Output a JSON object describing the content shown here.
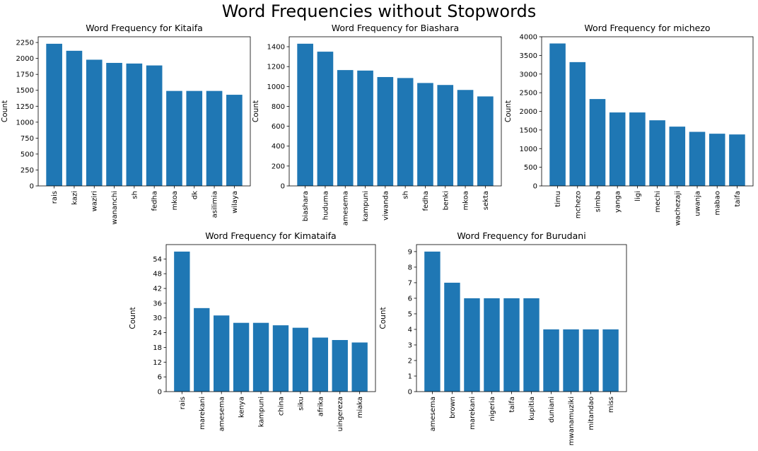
{
  "suptitle": "Word Frequencies without Stopwords",
  "bar_color": "#1f77b4",
  "chart_data": [
    {
      "type": "bar",
      "title": "Word Frequency for Kitaifa",
      "xlabel": "",
      "ylabel": "Count",
      "categories": [
        "rais",
        "kazi",
        "waziri",
        "wananchi",
        "sh",
        "fedha",
        "mkoa",
        "dk",
        "asilimia",
        "wilaya"
      ],
      "values": [
        2230,
        2120,
        1980,
        1930,
        1920,
        1890,
        1490,
        1490,
        1490,
        1430
      ],
      "ylim": [
        0,
        2340
      ],
      "yticks": [
        0,
        250,
        500,
        750,
        1000,
        1250,
        1500,
        1750,
        2000,
        2250
      ]
    },
    {
      "type": "bar",
      "title": "Word Frequency for Biashara",
      "xlabel": "",
      "ylabel": "Count",
      "categories": [
        "biashara",
        "huduma",
        "amesema",
        "kampuni",
        "viwanda",
        "sh",
        "fedha",
        "benki",
        "mkoa",
        "sekta"
      ],
      "values": [
        1430,
        1350,
        1165,
        1160,
        1095,
        1085,
        1035,
        1015,
        965,
        900
      ],
      "ylim": [
        0,
        1500
      ],
      "yticks": [
        0,
        200,
        400,
        600,
        800,
        1000,
        1200,
        1400
      ]
    },
    {
      "type": "bar",
      "title": "Word Frequency for michezo",
      "xlabel": "",
      "ylabel": "Count",
      "categories": [
        "timu",
        "mchezo",
        "simba",
        "yanga",
        "ligi",
        "mechi",
        "wachezaji",
        "uwanja",
        "mabao",
        "taifa"
      ],
      "values": [
        3820,
        3320,
        2330,
        1970,
        1970,
        1760,
        1590,
        1450,
        1400,
        1380
      ],
      "ylim": [
        0,
        4000
      ],
      "yticks": [
        0,
        500,
        1000,
        1500,
        2000,
        2500,
        3000,
        3500,
        4000
      ]
    },
    {
      "type": "bar",
      "title": "Word Frequency for Kimataifa",
      "xlabel": "",
      "ylabel": "Count",
      "categories": [
        "rais",
        "marekani",
        "amesema",
        "kenya",
        "kampuni",
        "china",
        "siku",
        "afrika",
        "uingereza",
        "miaka"
      ],
      "values": [
        57,
        34,
        31,
        28,
        28,
        27,
        26,
        22,
        21,
        20
      ],
      "ylim": [
        0,
        59.85
      ],
      "yticks": [
        0,
        6,
        12,
        18,
        24,
        30,
        36,
        42,
        48,
        54
      ]
    },
    {
      "type": "bar",
      "title": "Word Frequency for Burudani",
      "xlabel": "",
      "ylabel": "Count",
      "categories": [
        "amesema",
        "brown",
        "marekani",
        "nigeria",
        "taifa",
        "kupitia",
        "duniani",
        "mwanamuziki",
        "mitandao",
        "miss"
      ],
      "values": [
        9,
        7,
        6,
        6,
        6,
        6,
        4,
        4,
        4,
        4
      ],
      "ylim": [
        0,
        9.45
      ],
      "yticks": [
        0,
        1,
        2,
        3,
        4,
        5,
        6,
        7,
        8,
        9
      ]
    }
  ]
}
